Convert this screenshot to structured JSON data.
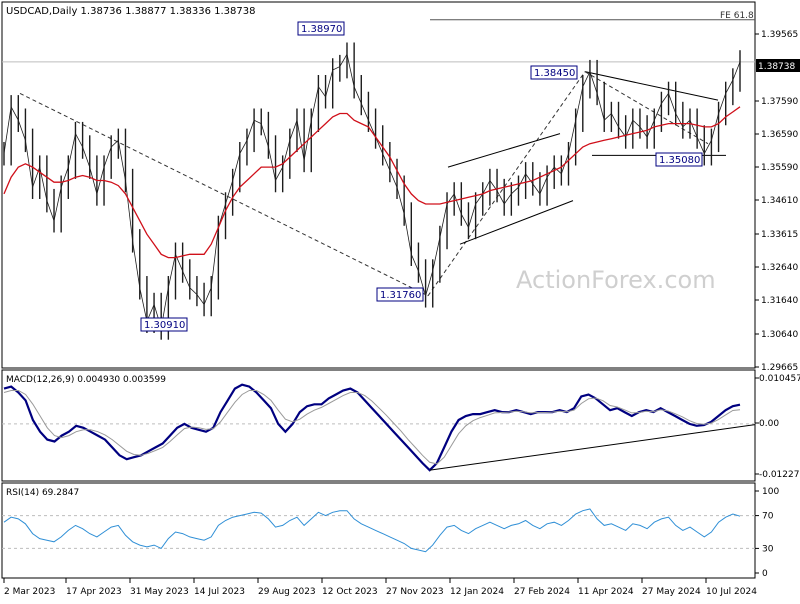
{
  "header": {
    "symbol_line": "USDCAD,Daily  1.38736 1.38877 1.38336 1.38738",
    "fe_label": "FE 61.8"
  },
  "watermark": "ActionForex.com",
  "colors": {
    "price": "#1c1c1c",
    "ma": "#d0101a",
    "macd": "#000080",
    "signal": "#9a9a9a",
    "rsi": "#2f8fd6",
    "trend": "#000000",
    "label_border": "#000080",
    "grid": "#bdbdbd"
  },
  "chart_data": [
    {
      "type": "line",
      "panel": "price",
      "series": [
        {
          "name": "",
          "role": "price",
          "values": [
            1.36,
            1.374,
            1.37,
            1.364,
            1.35,
            1.356,
            1.346,
            1.34,
            1.35,
            1.356,
            1.366,
            1.362,
            1.356,
            1.348,
            1.356,
            1.362,
            1.364,
            1.352,
            1.334,
            1.32,
            1.31,
            1.315,
            1.308,
            1.32,
            1.33,
            1.325,
            1.32,
            1.318,
            1.315,
            1.32,
            1.338,
            1.345,
            1.352,
            1.36,
            1.364,
            1.37,
            1.369,
            1.362,
            1.352,
            1.356,
            1.364,
            1.37,
            1.358,
            1.37,
            1.38,
            1.377,
            1.385,
            1.386,
            1.3897,
            1.38,
            1.375,
            1.37,
            1.365,
            1.36,
            1.355,
            1.35,
            1.342,
            1.33,
            1.325,
            1.3176,
            1.325,
            1.335,
            1.345,
            1.348,
            1.342,
            1.338,
            1.345,
            1.348,
            1.352,
            1.349,
            1.345,
            1.348,
            1.35,
            1.354,
            1.351,
            1.348,
            1.353,
            1.356,
            1.354,
            1.36,
            1.37,
            1.38,
            1.3845,
            1.378,
            1.37,
            1.372,
            1.368,
            1.365,
            1.37,
            1.368,
            1.365,
            1.37,
            1.375,
            1.378,
            1.372,
            1.368,
            1.37,
            1.365,
            1.36,
            1.364,
            1.372,
            1.378,
            1.382,
            1.3874
          ]
        },
        {
          "name": "",
          "role": "moving-average",
          "values": [
            1.348,
            1.353,
            1.356,
            1.357,
            1.356,
            1.3545,
            1.353,
            1.3515,
            1.3515,
            1.352,
            1.353,
            1.3535,
            1.353,
            1.352,
            1.352,
            1.3515,
            1.3505,
            1.348,
            1.344,
            1.34,
            1.336,
            1.333,
            1.33,
            1.329,
            1.329,
            1.3295,
            1.33,
            1.33,
            1.33,
            1.333,
            1.338,
            1.343,
            1.347,
            1.35,
            1.352,
            1.354,
            1.356,
            1.356,
            1.356,
            1.357,
            1.359,
            1.361,
            1.363,
            1.365,
            1.367,
            1.369,
            1.371,
            1.372,
            1.372,
            1.37,
            1.369,
            1.368,
            1.365,
            1.362,
            1.359,
            1.355,
            1.351,
            1.348,
            1.346,
            1.345,
            1.345,
            1.345,
            1.3455,
            1.346,
            1.3465,
            1.347,
            1.3475,
            1.348,
            1.349,
            1.3495,
            1.35,
            1.3505,
            1.351,
            1.3515,
            1.352,
            1.353,
            1.354,
            1.355,
            1.356,
            1.358,
            1.36,
            1.362,
            1.363,
            1.3635,
            1.364,
            1.3645,
            1.365,
            1.3655,
            1.366,
            1.3665,
            1.367,
            1.368,
            1.3685,
            1.369,
            1.369,
            1.369,
            1.369,
            1.3685,
            1.368,
            1.368,
            1.369,
            1.371,
            1.3725,
            1.374
          ]
        }
      ],
      "y_ticks": [
        "1.39565",
        "1.38738",
        "1.37590",
        "1.36590",
        "1.35590",
        "1.34610",
        "1.33615",
        "1.32640",
        "1.31640",
        "1.30640",
        "1.29665"
      ],
      "ylim": [
        1.29665,
        1.4029
      ],
      "annotations": [
        {
          "text": "1.38970",
          "value": 1.3897
        },
        {
          "text": "1.38450",
          "value": 1.3845
        },
        {
          "text": "1.35080",
          "value": 1.3508
        },
        {
          "text": "1.31760",
          "value": 1.3176
        },
        {
          "text": "1.30910",
          "value": 1.3091
        }
      ],
      "current_price_label": "1.38738",
      "fe_level": 1.4
    },
    {
      "type": "line",
      "panel": "macd",
      "title": "MACD(12,26,9) 0.004930 0.003599",
      "y_ticks": [
        "0.010457",
        "0.00",
        "-0.012276"
      ],
      "ylim": [
        -0.0138,
        0.0117
      ],
      "series": [
        {
          "name": "",
          "role": "macd",
          "values": [
            0.009,
            0.0095,
            0.008,
            0.006,
            0.001,
            -0.002,
            -0.004,
            -0.0045,
            -0.003,
            -0.002,
            -0.0005,
            -0.001,
            -0.002,
            -0.003,
            -0.004,
            -0.006,
            -0.008,
            -0.009,
            -0.0085,
            -0.008,
            -0.007,
            -0.006,
            -0.005,
            -0.003,
            -0.001,
            0.0,
            -0.001,
            -0.0015,
            -0.002,
            -0.001,
            0.003,
            0.006,
            0.009,
            0.01,
            0.0095,
            0.008,
            0.006,
            0.004,
            0.0,
            -0.002,
            0.0,
            0.003,
            0.0045,
            0.005,
            0.005,
            0.0065,
            0.0075,
            0.0085,
            0.009,
            0.008,
            0.006,
            0.004,
            0.002,
            0.0,
            -0.002,
            -0.004,
            -0.006,
            -0.008,
            -0.01,
            -0.0118,
            -0.01,
            -0.006,
            -0.002,
            0.001,
            0.002,
            0.0025,
            0.0025,
            0.003,
            0.0035,
            0.003,
            0.003,
            0.0035,
            0.003,
            0.0025,
            0.003,
            0.003,
            0.003,
            0.0035,
            0.003,
            0.004,
            0.007,
            0.0075,
            0.0065,
            0.005,
            0.0035,
            0.004,
            0.003,
            0.002,
            0.003,
            0.0035,
            0.003,
            0.004,
            0.003,
            0.002,
            0.001,
            0.0,
            -0.0005,
            -0.0003,
            0.0005,
            0.002,
            0.0035,
            0.0045,
            0.0049
          ]
        },
        {
          "name": "",
          "role": "signal",
          "values": [
            0.008,
            0.0085,
            0.0085,
            0.0075,
            0.005,
            0.002,
            -0.001,
            -0.003,
            -0.0035,
            -0.003,
            -0.002,
            -0.0015,
            -0.0015,
            -0.002,
            -0.0028,
            -0.004,
            -0.0055,
            -0.007,
            -0.0078,
            -0.008,
            -0.0075,
            -0.0068,
            -0.006,
            -0.0045,
            -0.0028,
            -0.0012,
            -0.0008,
            -0.001,
            -0.0014,
            -0.0012,
            0.0005,
            0.003,
            0.0055,
            0.0075,
            0.0085,
            0.0085,
            0.0075,
            0.006,
            0.0035,
            0.0012,
            0.0005,
            0.0012,
            0.0025,
            0.0035,
            0.0042,
            0.0052,
            0.0062,
            0.0072,
            0.008,
            0.008,
            0.0072,
            0.0058,
            0.004,
            0.0022,
            0.0002,
            -0.0018,
            -0.004,
            -0.006,
            -0.008,
            -0.0098,
            -0.0102,
            -0.0085,
            -0.0055,
            -0.0025,
            -0.0005,
            0.0008,
            0.0016,
            0.0022,
            0.0028,
            0.0029,
            0.003,
            0.0032,
            0.0031,
            0.0028,
            0.0029,
            0.0029,
            0.003,
            0.0032,
            0.0031,
            0.0035,
            0.0052,
            0.0064,
            0.0066,
            0.0059,
            0.0047,
            0.0043,
            0.0036,
            0.0028,
            0.0029,
            0.0032,
            0.0031,
            0.0036,
            0.0033,
            0.0026,
            0.0018,
            0.0008,
            0.0001,
            -0.0001,
            0.0002,
            0.0011,
            0.0023,
            0.0034,
            0.0036
          ]
        }
      ]
    },
    {
      "type": "line",
      "panel": "rsi",
      "title": "RSI(14) 69.2847",
      "y_ticks": [
        "100",
        "70",
        "30",
        "0"
      ],
      "ylim": [
        0,
        100
      ],
      "levels": [
        70,
        30
      ],
      "series": [
        {
          "name": "",
          "role": "rsi",
          "values": [
            62,
            68,
            66,
            60,
            48,
            42,
            40,
            38,
            44,
            52,
            58,
            54,
            48,
            44,
            50,
            56,
            58,
            46,
            38,
            34,
            32,
            34,
            30,
            42,
            50,
            48,
            44,
            42,
            40,
            44,
            58,
            64,
            68,
            70,
            72,
            74,
            73,
            66,
            56,
            58,
            64,
            68,
            58,
            66,
            74,
            70,
            74,
            76,
            76,
            66,
            60,
            56,
            52,
            48,
            44,
            40,
            36,
            30,
            28,
            26,
            34,
            46,
            56,
            58,
            52,
            48,
            54,
            58,
            62,
            58,
            54,
            58,
            60,
            64,
            58,
            54,
            60,
            62,
            58,
            64,
            72,
            76,
            78,
            66,
            58,
            60,
            56,
            52,
            60,
            58,
            54,
            62,
            66,
            68,
            58,
            52,
            56,
            50,
            44,
            50,
            62,
            68,
            72,
            69.28
          ]
        }
      ]
    }
  ],
  "x_axis": {
    "tick_labels": [
      "2 Mar 2023",
      "17 Apr 2023",
      "31 May 2023",
      "14 Jul 2023",
      "29 Aug 2023",
      "12 Oct 2023",
      "27 Nov 2023",
      "12 Jan 2024",
      "27 Feb 2024",
      "11 Apr 2024",
      "27 May 2024",
      "10 Jul 2024"
    ]
  }
}
